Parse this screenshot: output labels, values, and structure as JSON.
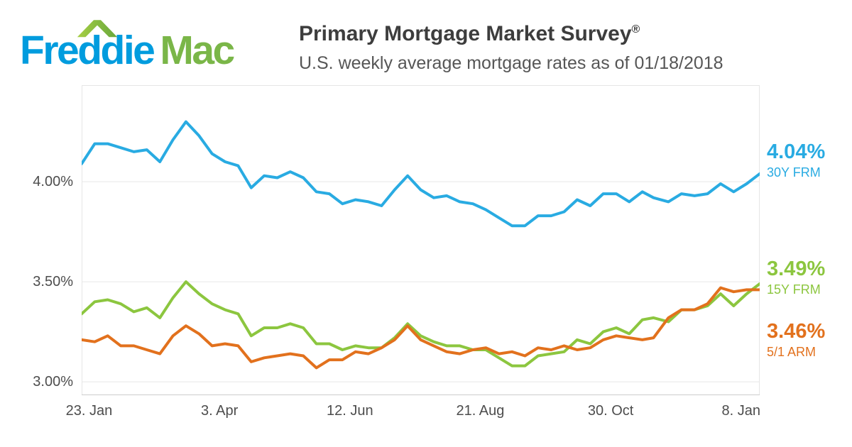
{
  "logo": {
    "freddie": "Freddie",
    "mac": "Mac"
  },
  "header": {
    "title": "Primary Mortgage Market Survey",
    "registered": "®",
    "subtitle": "U.S. weekly average mortgage rates as of 01/18/2018"
  },
  "colors": {
    "blue": "#29ABE2",
    "green": "#8CC63F",
    "orange": "#E2711D",
    "logo_blue": "#009CDE",
    "logo_green": "#7AB648",
    "grid": "#E6E6E6",
    "axis_line": "#CCCCCC",
    "axis_text": "#4D4D4D"
  },
  "chart_data": {
    "type": "line",
    "title": "Primary Mortgage Market Survey",
    "subtitle": "U.S. weekly average mortgage rates as of 01/18/2018",
    "grid": true,
    "legend_position": "right-outside",
    "y_axis_range": [
      2.933,
      4.483
    ],
    "y_ticks": [
      {
        "label": "4.00%",
        "value": 4.0
      },
      {
        "label": "3.50%",
        "value": 3.5
      },
      {
        "label": "3.00%",
        "value": 3.0
      }
    ],
    "x_ticks": [
      {
        "label": "23. Jan",
        "date": "2017-01-23"
      },
      {
        "label": "3. Apr",
        "date": "2017-04-03"
      },
      {
        "label": "12. Jun",
        "date": "2017-06-12"
      },
      {
        "label": "21. Aug",
        "date": "2017-08-21"
      },
      {
        "label": "30. Oct",
        "date": "2017-10-30"
      },
      {
        "label": "8. Jan",
        "date": "2018-01-08"
      }
    ],
    "x": [
      "2017-01-19",
      "2017-01-26",
      "2017-02-02",
      "2017-02-09",
      "2017-02-16",
      "2017-02-23",
      "2017-03-02",
      "2017-03-09",
      "2017-03-16",
      "2017-03-23",
      "2017-03-30",
      "2017-04-06",
      "2017-04-13",
      "2017-04-20",
      "2017-04-27",
      "2017-05-04",
      "2017-05-11",
      "2017-05-18",
      "2017-05-25",
      "2017-06-01",
      "2017-06-08",
      "2017-06-15",
      "2017-06-22",
      "2017-06-29",
      "2017-07-06",
      "2017-07-13",
      "2017-07-20",
      "2017-07-27",
      "2017-08-03",
      "2017-08-10",
      "2017-08-17",
      "2017-08-24",
      "2017-08-31",
      "2017-09-07",
      "2017-09-14",
      "2017-09-21",
      "2017-09-28",
      "2017-10-05",
      "2017-10-12",
      "2017-10-19",
      "2017-10-26",
      "2017-11-02",
      "2017-11-09",
      "2017-11-16",
      "2017-11-22",
      "2017-11-30",
      "2017-12-07",
      "2017-12-14",
      "2017-12-21",
      "2017-12-28",
      "2018-01-04",
      "2018-01-11",
      "2018-01-18"
    ],
    "series": [
      {
        "name": "30Y FRM",
        "end_label": "4.04%",
        "color": "blue",
        "values": [
          4.09,
          4.19,
          4.19,
          4.17,
          4.15,
          4.16,
          4.1,
          4.21,
          4.3,
          4.23,
          4.14,
          4.1,
          4.08,
          3.97,
          4.03,
          4.02,
          4.05,
          4.02,
          3.95,
          3.94,
          3.89,
          3.91,
          3.9,
          3.88,
          3.96,
          4.03,
          3.96,
          3.92,
          3.93,
          3.9,
          3.89,
          3.86,
          3.82,
          3.78,
          3.78,
          3.83,
          3.83,
          3.85,
          3.91,
          3.88,
          3.94,
          3.94,
          3.9,
          3.95,
          3.92,
          3.9,
          3.94,
          3.93,
          3.94,
          3.99,
          3.95,
          3.99,
          4.04
        ]
      },
      {
        "name": "15Y FRM",
        "end_label": "3.49%",
        "color": "green",
        "values": [
          3.34,
          3.4,
          3.41,
          3.39,
          3.35,
          3.37,
          3.32,
          3.42,
          3.5,
          3.44,
          3.39,
          3.36,
          3.34,
          3.23,
          3.27,
          3.27,
          3.29,
          3.27,
          3.19,
          3.19,
          3.16,
          3.18,
          3.17,
          3.17,
          3.22,
          3.29,
          3.23,
          3.2,
          3.18,
          3.18,
          3.16,
          3.16,
          3.12,
          3.08,
          3.08,
          3.13,
          3.14,
          3.15,
          3.21,
          3.19,
          3.25,
          3.27,
          3.24,
          3.31,
          3.32,
          3.3,
          3.36,
          3.36,
          3.38,
          3.44,
          3.38,
          3.44,
          3.49
        ]
      },
      {
        "name": "5/1 ARM",
        "end_label": "3.46%",
        "color": "orange",
        "values": [
          3.21,
          3.2,
          3.23,
          3.18,
          3.18,
          3.16,
          3.14,
          3.23,
          3.28,
          3.24,
          3.18,
          3.19,
          3.18,
          3.1,
          3.12,
          3.13,
          3.14,
          3.13,
          3.07,
          3.11,
          3.11,
          3.15,
          3.14,
          3.17,
          3.21,
          3.28,
          3.21,
          3.18,
          3.15,
          3.14,
          3.16,
          3.17,
          3.14,
          3.15,
          3.13,
          3.17,
          3.16,
          3.18,
          3.16,
          3.17,
          3.21,
          3.23,
          3.22,
          3.21,
          3.22,
          3.32,
          3.36,
          3.36,
          3.39,
          3.47,
          3.45,
          3.46,
          3.46
        ]
      }
    ]
  }
}
